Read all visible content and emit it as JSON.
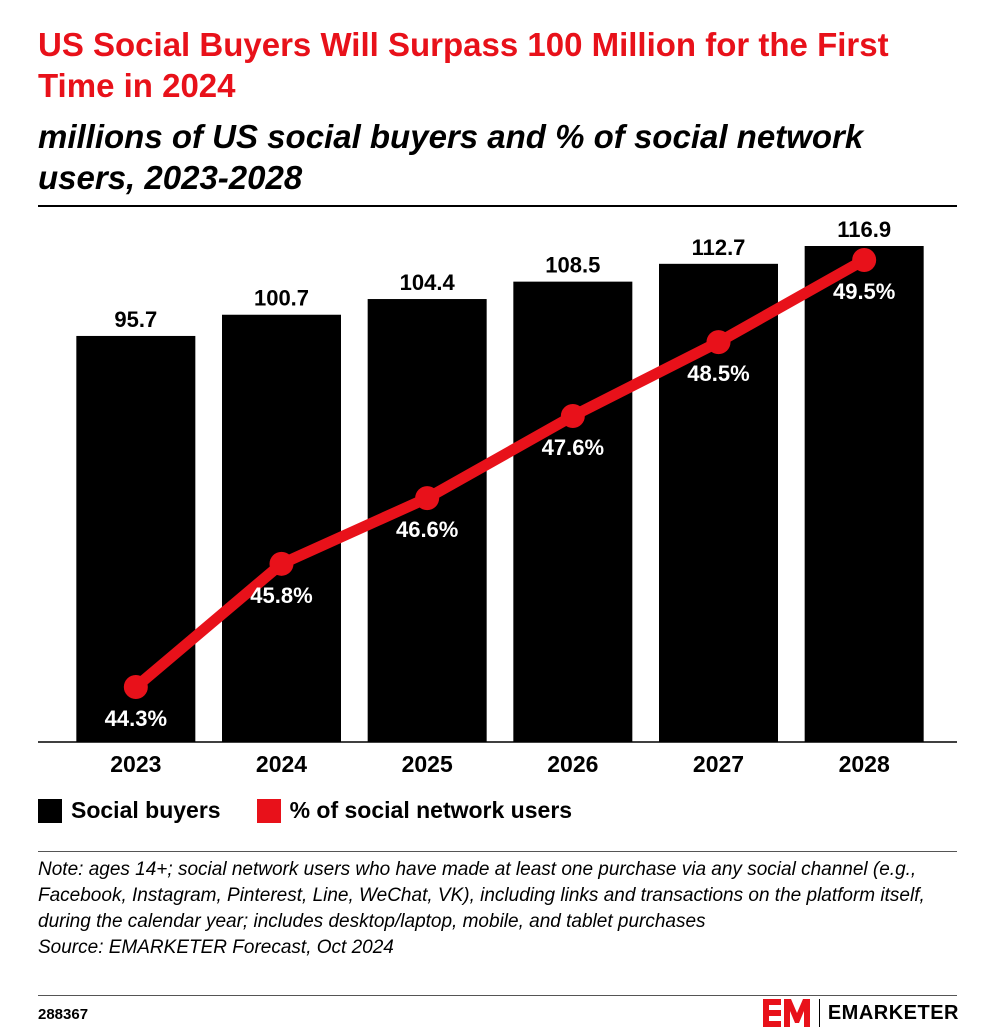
{
  "title": "US Social Buyers Will Surpass 100 Million for the First Time in 2024",
  "subtitle": "millions of US social buyers and % of social network users, 2023-2028",
  "chart_data": {
    "type": "bar",
    "categories": [
      "2023",
      "2024",
      "2025",
      "2026",
      "2027",
      "2028"
    ],
    "series": [
      {
        "name": "Social buyers",
        "type": "bar",
        "values": [
          95.7,
          100.7,
          104.4,
          108.5,
          112.7,
          116.9
        ],
        "labels": [
          "95.7",
          "100.7",
          "104.4",
          "108.5",
          "112.7",
          "116.9"
        ],
        "color": "#000000"
      },
      {
        "name": "% of social network users",
        "type": "line",
        "values": [
          44.3,
          45.8,
          46.6,
          47.6,
          48.5,
          49.5
        ],
        "labels": [
          "44.3%",
          "45.8%",
          "46.6%",
          "47.6%",
          "48.5%",
          "49.5%"
        ],
        "color": "#e8111a"
      }
    ],
    "bar_ylim": [
      0,
      120
    ],
    "line_ylim": [
      43.3,
      50.5
    ],
    "legend_position": "bottom-left"
  },
  "legend": {
    "bars_label": "Social buyers",
    "line_label": "% of social network users"
  },
  "note": "Note: ages 14+; social network users who have made at least one purchase via any social channel (e.g., Facebook, Instagram, Pinterest, Line, WeChat, VK), including links and transactions on the platform itself, during the calendar year; includes desktop/laptop, mobile, and tablet purchases",
  "source": "Source: EMARKETER Forecast, Oct 2024",
  "chart_id": "288367",
  "brand": {
    "name": "EMARKETER",
    "accent": "#e8111a"
  }
}
